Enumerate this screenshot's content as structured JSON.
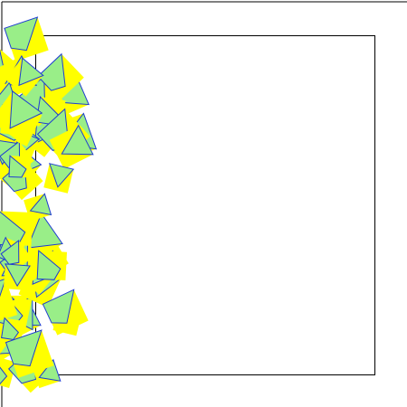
{
  "colors": {
    "background": "#ffffff",
    "frame_stroke": "#000000",
    "mosaic_primary": "#ffff00",
    "mosaic_secondary": "#99ee88",
    "mosaic_edge": "#1e3cd2"
  },
  "scene": {
    "description_visible": false,
    "frames": [
      {
        "name": "outer-frame"
      },
      {
        "name": "inner-frame"
      }
    ],
    "mosaic": {
      "name": "polygon-mosaic",
      "tile_count": 60
    }
  }
}
